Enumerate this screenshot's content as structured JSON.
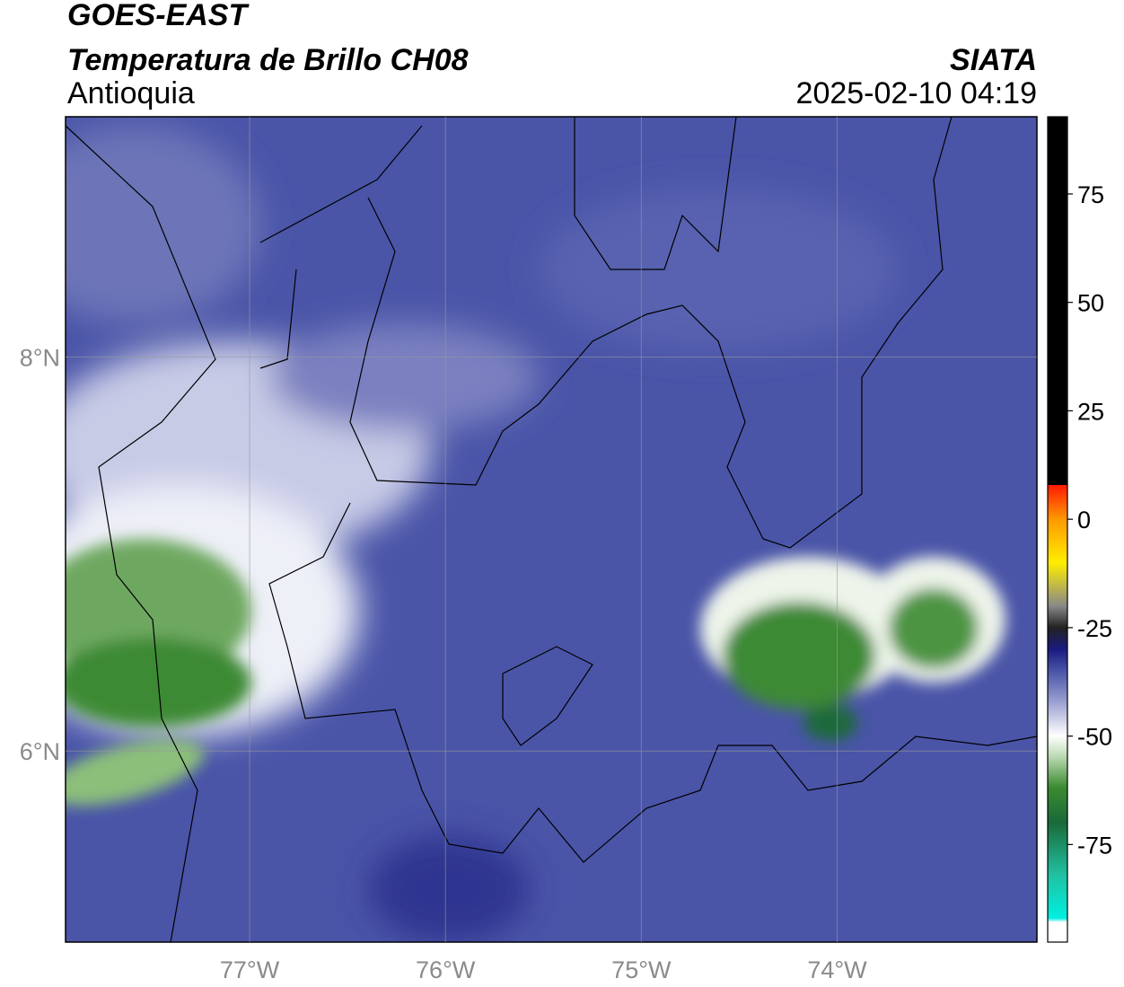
{
  "header": {
    "title": "GOES-EAST",
    "subtitle": "Temperatura de Brillo CH08",
    "region": "Antioquia",
    "source": "SIATA",
    "datetime": "2025-02-10 04:19"
  },
  "map": {
    "lonlim": [
      -77.94,
      -72.98
    ],
    "latlim": [
      5.03,
      9.22
    ],
    "lon_ticks": [
      {
        "value": -77,
        "label": "77°W"
      },
      {
        "value": -76,
        "label": "76°W"
      },
      {
        "value": -75,
        "label": "75°W"
      },
      {
        "value": -74,
        "label": "74°W"
      }
    ],
    "lat_ticks": [
      {
        "value": 8,
        "label": "8°N"
      },
      {
        "value": 6,
        "label": "6°N"
      }
    ]
  },
  "colorbar": {
    "range": [
      -97.5,
      92.8
    ],
    "ticks": [
      75,
      50,
      25,
      0,
      -25,
      -50,
      -75
    ]
  }
}
